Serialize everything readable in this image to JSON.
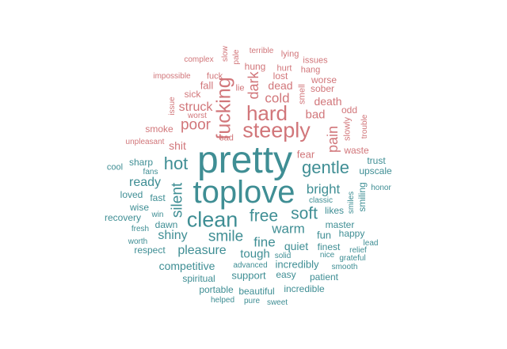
{
  "colors": {
    "negative": "#d1767a",
    "positive": "#3f8e94"
  },
  "words": [
    {
      "text": "pretty",
      "sentiment": "positive"
    },
    {
      "text": "toplove",
      "sentiment": "positive"
    },
    {
      "text": "hard",
      "sentiment": "negative"
    },
    {
      "text": "steeply",
      "sentiment": "negative"
    },
    {
      "text": "fucking",
      "sentiment": "negative"
    },
    {
      "text": "clean",
      "sentiment": "positive"
    },
    {
      "text": "gentle",
      "sentiment": "positive"
    },
    {
      "text": "hot",
      "sentiment": "positive"
    },
    {
      "text": "free",
      "sentiment": "positive"
    },
    {
      "text": "soft",
      "sentiment": "positive"
    },
    {
      "text": "silent",
      "sentiment": "positive"
    },
    {
      "text": "smile",
      "sentiment": "positive"
    },
    {
      "text": "pain",
      "sentiment": "negative"
    },
    {
      "text": "poor",
      "sentiment": "negative"
    },
    {
      "text": "dark",
      "sentiment": "negative"
    },
    {
      "text": "cold",
      "sentiment": "negative"
    },
    {
      "text": "warm",
      "sentiment": "positive"
    },
    {
      "text": "bright",
      "sentiment": "positive"
    },
    {
      "text": "struck",
      "sentiment": "negative"
    },
    {
      "text": "fine",
      "sentiment": "positive"
    },
    {
      "text": "ready",
      "sentiment": "positive"
    },
    {
      "text": "shiny",
      "sentiment": "positive"
    },
    {
      "text": "pleasure",
      "sentiment": "positive"
    },
    {
      "text": "tough",
      "sentiment": "positive"
    },
    {
      "text": "bad",
      "sentiment": "negative"
    },
    {
      "text": "dead",
      "sentiment": "negative"
    },
    {
      "text": "death",
      "sentiment": "negative"
    },
    {
      "text": "competitive",
      "sentiment": "positive"
    },
    {
      "text": "shit",
      "sentiment": "negative"
    },
    {
      "text": "quiet",
      "sentiment": "positive"
    },
    {
      "text": "fear",
      "sentiment": "negative"
    },
    {
      "text": "fun",
      "sentiment": "positive"
    },
    {
      "text": "support",
      "sentiment": "positive"
    },
    {
      "text": "incredibly",
      "sentiment": "positive"
    },
    {
      "text": "fall",
      "sentiment": "negative"
    },
    {
      "text": "hung",
      "sentiment": "negative"
    },
    {
      "text": "lost",
      "sentiment": "negative"
    },
    {
      "text": "master",
      "sentiment": "positive"
    },
    {
      "text": "sharp",
      "sentiment": "positive"
    },
    {
      "text": "smoke",
      "sentiment": "negative"
    },
    {
      "text": "sick",
      "sentiment": "negative"
    },
    {
      "text": "sober",
      "sentiment": "negative"
    },
    {
      "text": "worse",
      "sentiment": "negative"
    },
    {
      "text": "odd",
      "sentiment": "negative"
    },
    {
      "text": "waste",
      "sentiment": "negative"
    },
    {
      "text": "trust",
      "sentiment": "positive"
    },
    {
      "text": "upscale",
      "sentiment": "positive"
    },
    {
      "text": "wise",
      "sentiment": "positive"
    },
    {
      "text": "fast",
      "sentiment": "positive"
    },
    {
      "text": "loved",
      "sentiment": "positive"
    },
    {
      "text": "dawn",
      "sentiment": "positive"
    },
    {
      "text": "finest",
      "sentiment": "positive"
    },
    {
      "text": "likes",
      "sentiment": "positive"
    },
    {
      "text": "smiling",
      "sentiment": "positive"
    },
    {
      "text": "spiritual",
      "sentiment": "positive"
    },
    {
      "text": "easy",
      "sentiment": "positive"
    },
    {
      "text": "patient",
      "sentiment": "positive"
    },
    {
      "text": "portable",
      "sentiment": "positive"
    },
    {
      "text": "beautiful",
      "sentiment": "positive"
    },
    {
      "text": "incredible",
      "sentiment": "positive"
    },
    {
      "text": "happy",
      "sentiment": "positive"
    },
    {
      "text": "respect",
      "sentiment": "positive"
    },
    {
      "text": "recovery",
      "sentiment": "positive"
    },
    {
      "text": "fuck",
      "sentiment": "negative"
    },
    {
      "text": "lie",
      "sentiment": "negative"
    },
    {
      "text": "lying",
      "sentiment": "negative"
    },
    {
      "text": "issues",
      "sentiment": "negative"
    },
    {
      "text": "hang",
      "sentiment": "negative"
    },
    {
      "text": "hurt",
      "sentiment": "negative"
    },
    {
      "text": "smell",
      "sentiment": "negative"
    },
    {
      "text": "slowly",
      "sentiment": "negative"
    },
    {
      "text": "sad",
      "sentiment": "negative"
    },
    {
      "text": "worst",
      "sentiment": "negative"
    },
    {
      "text": "complex",
      "sentiment": "negative"
    },
    {
      "text": "impossible",
      "sentiment": "negative"
    },
    {
      "text": "unpleasant",
      "sentiment": "negative"
    },
    {
      "text": "terrible",
      "sentiment": "negative"
    },
    {
      "text": "slow",
      "sentiment": "negative"
    },
    {
      "text": "pale",
      "sentiment": "negative"
    },
    {
      "text": "issue",
      "sentiment": "negative"
    },
    {
      "text": "trouble",
      "sentiment": "negative"
    },
    {
      "text": "cool",
      "sentiment": "positive"
    },
    {
      "text": "fans",
      "sentiment": "positive"
    },
    {
      "text": "win",
      "sentiment": "positive"
    },
    {
      "text": "fresh",
      "sentiment": "positive"
    },
    {
      "text": "worth",
      "sentiment": "positive"
    },
    {
      "text": "classic",
      "sentiment": "positive"
    },
    {
      "text": "smiles",
      "sentiment": "positive"
    },
    {
      "text": "honor",
      "sentiment": "positive"
    },
    {
      "text": "lead",
      "sentiment": "positive"
    },
    {
      "text": "relief",
      "sentiment": "positive"
    },
    {
      "text": "grateful",
      "sentiment": "positive"
    },
    {
      "text": "nice",
      "sentiment": "positive"
    },
    {
      "text": "solid",
      "sentiment": "positive"
    },
    {
      "text": "smooth",
      "sentiment": "positive"
    },
    {
      "text": "advanced",
      "sentiment": "positive"
    },
    {
      "text": "helped",
      "sentiment": "positive"
    },
    {
      "text": "pure",
      "sentiment": "positive"
    },
    {
      "text": "sweet",
      "sentiment": "positive"
    }
  ]
}
